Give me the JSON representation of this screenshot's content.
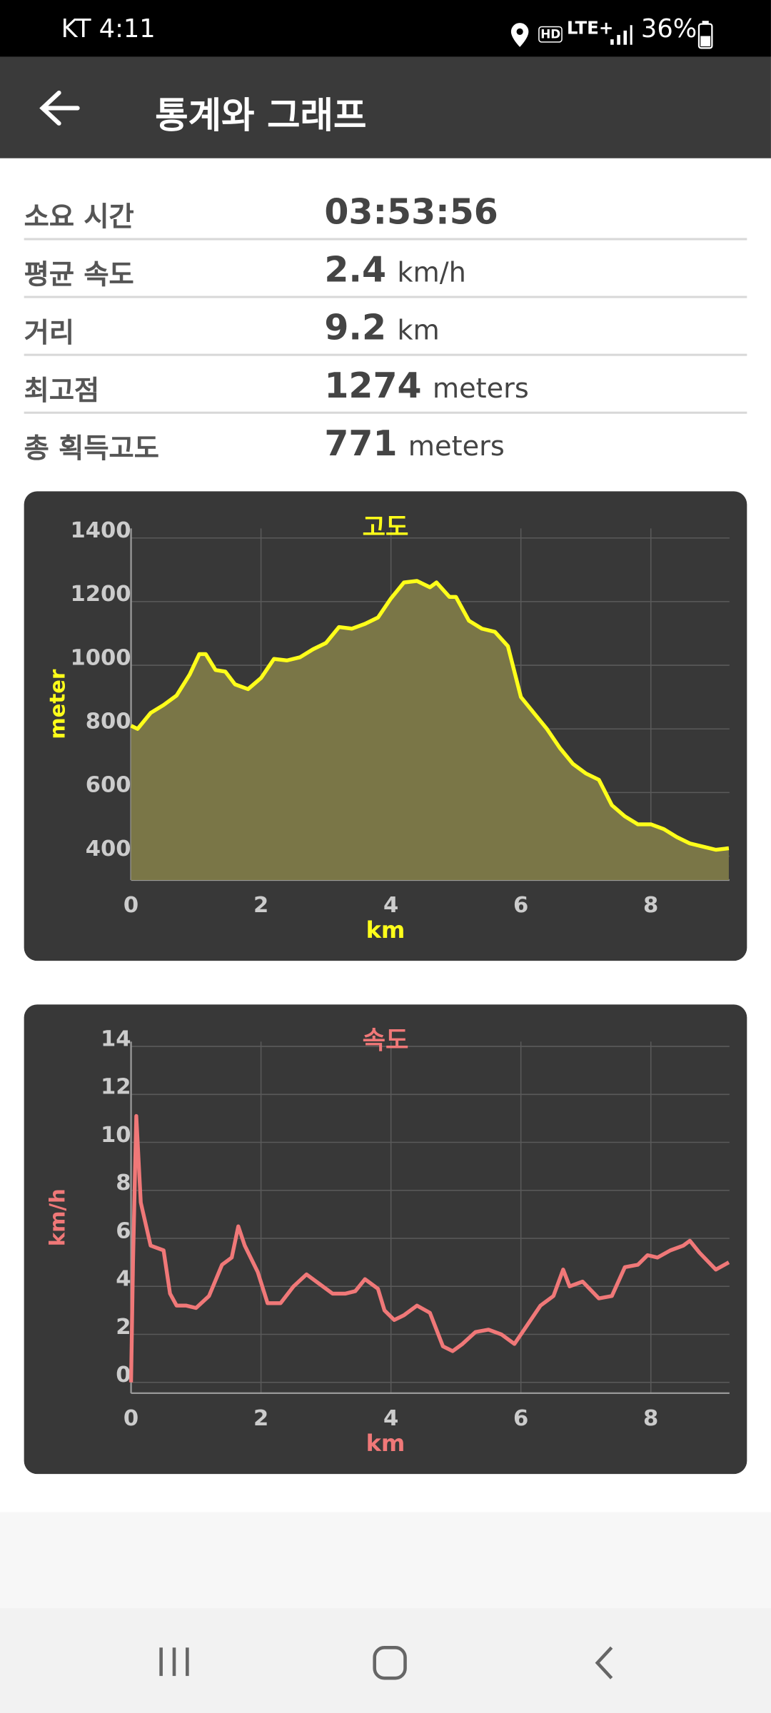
{
  "status_bar": {
    "carrier_time": "KT 4:11",
    "hd": "HD",
    "network": "LTE+",
    "battery": "36%"
  },
  "app_bar": {
    "title": "통계와 그래프"
  },
  "stats": [
    {
      "label": "소요 시간",
      "value": "03:53:56"
    },
    {
      "label": "평균 속도",
      "value": 2.4,
      "unit": "km/h"
    },
    {
      "label": "거리",
      "value": 9.2,
      "unit": "km"
    },
    {
      "label": "최고점",
      "value": 1274,
      "unit": "meters"
    },
    {
      "label": "총 획득고도",
      "value": 771,
      "unit": "meters"
    }
  ],
  "chart_data": [
    {
      "type": "area",
      "title": "고도",
      "x_label": "km",
      "y_label": "meter",
      "color": "#ffff1a",
      "fill": "#7a7647",
      "x": [
        0,
        0.1,
        0.3,
        0.5,
        0.7,
        0.9,
        1.05,
        1.15,
        1.3,
        1.45,
        1.6,
        1.8,
        2.0,
        2.2,
        2.4,
        2.6,
        2.8,
        3.0,
        3.2,
        3.4,
        3.6,
        3.8,
        4.0,
        4.2,
        4.4,
        4.6,
        4.7,
        4.9,
        5.0,
        5.2,
        5.4,
        5.6,
        5.8,
        6.0,
        6.2,
        6.4,
        6.6,
        6.8,
        7.0,
        7.2,
        7.4,
        7.6,
        7.8,
        8.0,
        8.2,
        8.4,
        8.6,
        8.8,
        9.0,
        9.2
      ],
      "values": [
        810,
        800,
        850,
        875,
        905,
        970,
        1035,
        1035,
        985,
        980,
        940,
        925,
        960,
        1020,
        1015,
        1025,
        1050,
        1070,
        1120,
        1115,
        1130,
        1150,
        1210,
        1260,
        1265,
        1245,
        1260,
        1215,
        1215,
        1140,
        1115,
        1105,
        1060,
        900,
        850,
        800,
        740,
        690,
        660,
        640,
        560,
        525,
        500,
        500,
        485,
        460,
        440,
        430,
        420,
        425
      ],
      "xlim": [
        0,
        9.21
      ],
      "ylim": [
        325,
        1430
      ],
      "xticks": [
        0,
        2,
        4,
        6,
        8
      ],
      "yticks": [
        400,
        600,
        800,
        1000,
        1200,
        1400
      ],
      "grid": true
    },
    {
      "type": "line",
      "title": "속도",
      "x_label": "km",
      "y_label": "km/h",
      "color": "#f07878",
      "x": [
        0,
        0.03,
        0.08,
        0.15,
        0.3,
        0.5,
        0.6,
        0.7,
        0.85,
        1.0,
        1.2,
        1.4,
        1.55,
        1.65,
        1.75,
        1.95,
        2.1,
        2.3,
        2.5,
        2.7,
        2.9,
        3.1,
        3.3,
        3.45,
        3.6,
        3.8,
        3.9,
        4.05,
        4.2,
        4.4,
        4.6,
        4.8,
        4.95,
        5.1,
        5.3,
        5.5,
        5.7,
        5.9,
        6.1,
        6.3,
        6.5,
        6.65,
        6.75,
        6.95,
        7.2,
        7.4,
        7.6,
        7.8,
        7.95,
        8.1,
        8.3,
        8.5,
        8.6,
        8.75,
        9.0,
        9.2
      ],
      "values": [
        0,
        5,
        11.1,
        7.5,
        5.7,
        5.5,
        3.7,
        3.2,
        3.2,
        3.1,
        3.6,
        4.9,
        5.2,
        6.5,
        5.7,
        4.6,
        3.3,
        3.3,
        4.0,
        4.5,
        4.1,
        3.7,
        3.7,
        3.8,
        4.3,
        3.9,
        3.0,
        2.6,
        2.8,
        3.2,
        2.9,
        1.5,
        1.3,
        1.6,
        2.1,
        2.2,
        2.0,
        1.6,
        2.4,
        3.2,
        3.6,
        4.7,
        4.0,
        4.2,
        3.5,
        3.6,
        4.8,
        4.9,
        5.3,
        5.2,
        5.5,
        5.7,
        5.9,
        5.4,
        4.7,
        5.0
      ],
      "xlim": [
        0,
        9.21
      ],
      "ylim": [
        -0.45,
        14.2
      ],
      "xticks": [
        0,
        2,
        4,
        6,
        8
      ],
      "yticks": [
        0,
        2,
        4,
        6,
        8,
        10,
        12,
        14
      ],
      "grid": true
    }
  ]
}
